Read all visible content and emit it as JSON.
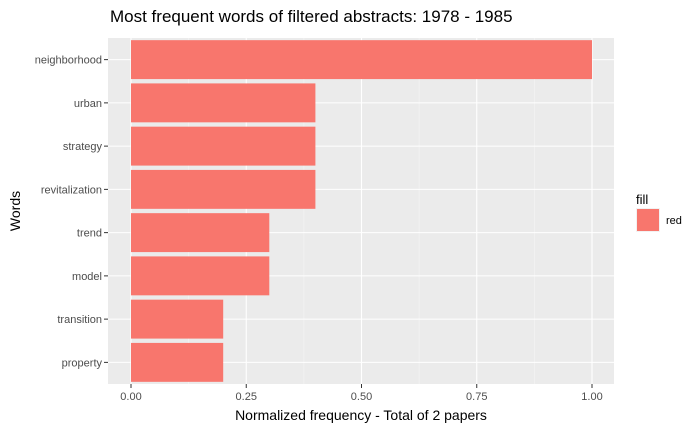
{
  "chart_data": {
    "type": "bar",
    "orientation": "horizontal",
    "title": "Most frequent words of filtered abstracts: 1978 - 1985",
    "xlabel": "Normalized frequency - Total of 2 papers",
    "ylabel": "Words",
    "categories": [
      "neighborhood",
      "urban",
      "strategy",
      "revitalization",
      "trend",
      "model",
      "transition",
      "property"
    ],
    "values": [
      1.0,
      0.4,
      0.4,
      0.4,
      0.3,
      0.3,
      0.2,
      0.2
    ],
    "xlim": [
      0,
      1.05
    ],
    "xticks": [
      "0.00",
      "0.25",
      "0.50",
      "0.75",
      "1.00"
    ],
    "grid": true,
    "legend": {
      "title": "fill",
      "entries": [
        {
          "label": "red",
          "color": "#F8766D"
        }
      ],
      "position": "right"
    },
    "colors": {
      "bar": "#F8766D",
      "panel": "#EBEBEB",
      "grid_major": "#FFFFFF"
    }
  }
}
